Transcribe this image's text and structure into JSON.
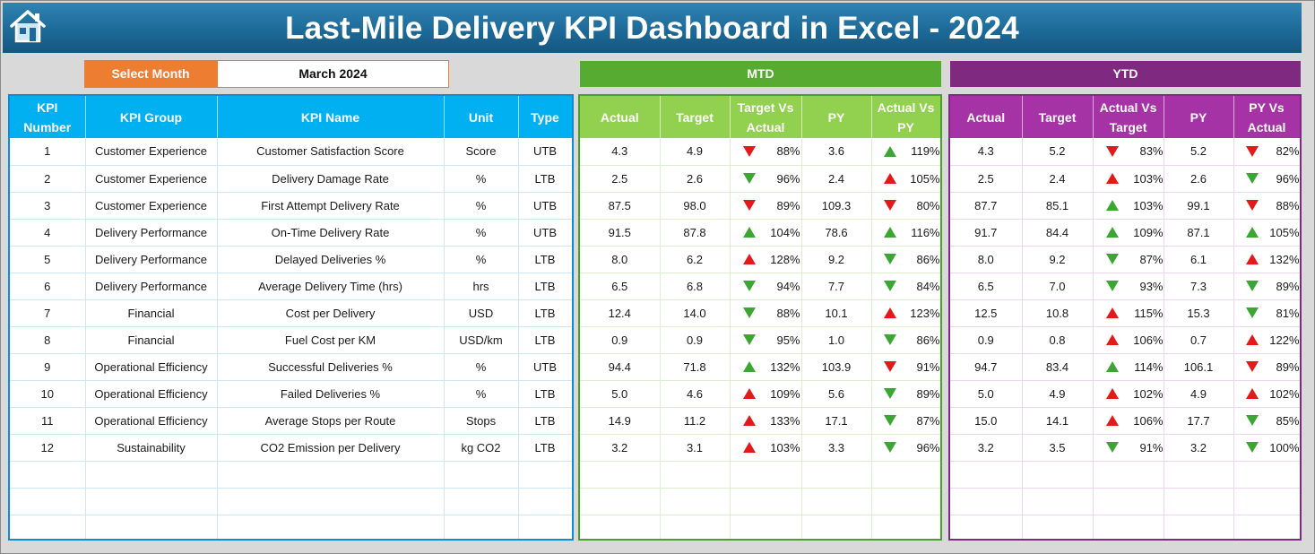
{
  "header": {
    "title": "Last-Mile Delivery KPI Dashboard in Excel - 2024"
  },
  "selector": {
    "label": "Select Month",
    "value": "March 2024"
  },
  "bands": {
    "mtd": "MTD",
    "ytd": "YTD"
  },
  "left_headers": [
    "KPI Number",
    "KPI Group",
    "KPI Name",
    "Unit",
    "Type"
  ],
  "mtd_headers": [
    "Actual",
    "Target",
    "Target Vs Actual",
    "PY",
    "Actual Vs PY"
  ],
  "ytd_headers": [
    "Actual",
    "Target",
    "Actual Vs Target",
    "PY",
    "PY Vs Actual"
  ],
  "colors": {
    "title_bar": "#1d6a98",
    "accent_orange": "#ed7d31",
    "left_header": "#00b0f0",
    "mtd_header": "#92d050",
    "ytd_header": "#a533a6",
    "up_green": "#3da533",
    "down_red": "#e21a1a"
  },
  "icons": {
    "home": "home-icon",
    "up": "triangle-up-icon",
    "down": "triangle-down-icon"
  },
  "rows": [
    {
      "num": "1",
      "group": "Customer Experience",
      "name": "Customer Satisfaction Score",
      "unit": "Score",
      "type": "UTB",
      "mtd": {
        "actual": "4.3",
        "target": "4.9",
        "tva": "88%",
        "tva_icon": "down-red",
        "py": "3.6",
        "avp": "119%",
        "avp_icon": "up-green"
      },
      "ytd": {
        "actual": "4.3",
        "target": "5.2",
        "avt": "83%",
        "avt_icon": "down-red",
        "py": "5.2",
        "pva": "82%",
        "pva_icon": "down-red"
      }
    },
    {
      "num": "2",
      "group": "Customer Experience",
      "name": "Delivery Damage Rate",
      "unit": "%",
      "type": "LTB",
      "mtd": {
        "actual": "2.5",
        "target": "2.6",
        "tva": "96%",
        "tva_icon": "down-green",
        "py": "2.4",
        "avp": "105%",
        "avp_icon": "up-red"
      },
      "ytd": {
        "actual": "2.5",
        "target": "2.4",
        "avt": "103%",
        "avt_icon": "up-red",
        "py": "2.6",
        "pva": "96%",
        "pva_icon": "down-green"
      }
    },
    {
      "num": "3",
      "group": "Customer Experience",
      "name": "First Attempt Delivery Rate",
      "unit": "%",
      "type": "UTB",
      "mtd": {
        "actual": "87.5",
        "target": "98.0",
        "tva": "89%",
        "tva_icon": "down-red",
        "py": "109.3",
        "avp": "80%",
        "avp_icon": "down-red"
      },
      "ytd": {
        "actual": "87.7",
        "target": "85.1",
        "avt": "103%",
        "avt_icon": "up-green",
        "py": "99.1",
        "pva": "88%",
        "pva_icon": "down-red"
      }
    },
    {
      "num": "4",
      "group": "Delivery Performance",
      "name": "On-Time Delivery Rate",
      "unit": "%",
      "type": "UTB",
      "mtd": {
        "actual": "91.5",
        "target": "87.8",
        "tva": "104%",
        "tva_icon": "up-green",
        "py": "78.6",
        "avp": "116%",
        "avp_icon": "up-green"
      },
      "ytd": {
        "actual": "91.7",
        "target": "84.4",
        "avt": "109%",
        "avt_icon": "up-green",
        "py": "87.1",
        "pva": "105%",
        "pva_icon": "up-green"
      }
    },
    {
      "num": "5",
      "group": "Delivery Performance",
      "name": "Delayed Deliveries %",
      "unit": "%",
      "type": "LTB",
      "mtd": {
        "actual": "8.0",
        "target": "6.2",
        "tva": "128%",
        "tva_icon": "up-red",
        "py": "9.2",
        "avp": "86%",
        "avp_icon": "down-green"
      },
      "ytd": {
        "actual": "8.0",
        "target": "9.2",
        "avt": "87%",
        "avt_icon": "down-green",
        "py": "6.1",
        "pva": "132%",
        "pva_icon": "up-red"
      }
    },
    {
      "num": "6",
      "group": "Delivery Performance",
      "name": "Average Delivery Time (hrs)",
      "unit": "hrs",
      "type": "LTB",
      "mtd": {
        "actual": "6.5",
        "target": "6.8",
        "tva": "94%",
        "tva_icon": "down-green",
        "py": "7.7",
        "avp": "84%",
        "avp_icon": "down-green"
      },
      "ytd": {
        "actual": "6.5",
        "target": "7.0",
        "avt": "93%",
        "avt_icon": "down-green",
        "py": "7.3",
        "pva": "89%",
        "pva_icon": "down-green"
      }
    },
    {
      "num": "7",
      "group": "Financial",
      "name": "Cost per Delivery",
      "unit": "USD",
      "type": "LTB",
      "mtd": {
        "actual": "12.4",
        "target": "14.0",
        "tva": "88%",
        "tva_icon": "down-green",
        "py": "10.1",
        "avp": "123%",
        "avp_icon": "up-red"
      },
      "ytd": {
        "actual": "12.5",
        "target": "10.8",
        "avt": "115%",
        "avt_icon": "up-red",
        "py": "15.3",
        "pva": "81%",
        "pva_icon": "down-green"
      }
    },
    {
      "num": "8",
      "group": "Financial",
      "name": "Fuel Cost per KM",
      "unit": "USD/km",
      "type": "LTB",
      "mtd": {
        "actual": "0.9",
        "target": "0.9",
        "tva": "95%",
        "tva_icon": "down-green",
        "py": "1.0",
        "avp": "86%",
        "avp_icon": "down-green"
      },
      "ytd": {
        "actual": "0.9",
        "target": "0.8",
        "avt": "106%",
        "avt_icon": "up-red",
        "py": "0.7",
        "pva": "122%",
        "pva_icon": "up-red"
      }
    },
    {
      "num": "9",
      "group": "Operational Efficiency",
      "name": "Successful Deliveries %",
      "unit": "%",
      "type": "UTB",
      "mtd": {
        "actual": "94.4",
        "target": "71.8",
        "tva": "132%",
        "tva_icon": "up-green",
        "py": "103.9",
        "avp": "91%",
        "avp_icon": "down-red"
      },
      "ytd": {
        "actual": "94.7",
        "target": "83.4",
        "avt": "114%",
        "avt_icon": "up-green",
        "py": "106.1",
        "pva": "89%",
        "pva_icon": "down-red"
      }
    },
    {
      "num": "10",
      "group": "Operational Efficiency",
      "name": "Failed Deliveries %",
      "unit": "%",
      "type": "LTB",
      "mtd": {
        "actual": "5.0",
        "target": "4.6",
        "tva": "109%",
        "tva_icon": "up-red",
        "py": "5.6",
        "avp": "89%",
        "avp_icon": "down-green"
      },
      "ytd": {
        "actual": "5.0",
        "target": "4.9",
        "avt": "102%",
        "avt_icon": "up-red",
        "py": "4.9",
        "pva": "102%",
        "pva_icon": "up-red"
      }
    },
    {
      "num": "11",
      "group": "Operational Efficiency",
      "name": "Average Stops per Route",
      "unit": "Stops",
      "type": "LTB",
      "mtd": {
        "actual": "14.9",
        "target": "11.2",
        "tva": "133%",
        "tva_icon": "up-red",
        "py": "17.1",
        "avp": "87%",
        "avp_icon": "down-green"
      },
      "ytd": {
        "actual": "15.0",
        "target": "14.1",
        "avt": "106%",
        "avt_icon": "up-red",
        "py": "17.7",
        "pva": "85%",
        "pva_icon": "down-green"
      }
    },
    {
      "num": "12",
      "group": "Sustainability",
      "name": "CO2 Emission per Delivery",
      "unit": "kg CO2",
      "type": "LTB",
      "mtd": {
        "actual": "3.2",
        "target": "3.1",
        "tva": "103%",
        "tva_icon": "up-red",
        "py": "3.3",
        "avp": "96%",
        "avp_icon": "down-green"
      },
      "ytd": {
        "actual": "3.2",
        "target": "3.5",
        "avt": "91%",
        "avt_icon": "down-green",
        "py": "3.2",
        "pva": "100%",
        "pva_icon": "down-green"
      }
    }
  ]
}
